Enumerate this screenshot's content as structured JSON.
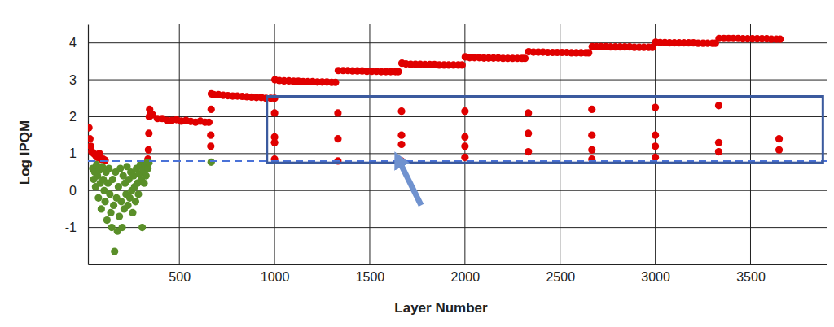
{
  "chart_data": {
    "type": "scatter",
    "x_label": "Layer Number",
    "y_label": "Log IPQM",
    "xlim": [
      20,
      3900
    ],
    "ylim": [
      -2,
      4.5
    ],
    "xticks": [
      500,
      1000,
      1500,
      2000,
      2500,
      3000,
      3500
    ],
    "yticks": [
      -1,
      0,
      1,
      2,
      3,
      4
    ],
    "grid": true,
    "threshold": 0.8,
    "highlight": {
      "x": [
        960,
        3880
      ],
      "y": [
        0.75,
        2.55
      ]
    },
    "arrow": {
      "from": [
        1770,
        -0.4
      ],
      "to": [
        1650,
        0.85
      ]
    },
    "series": [
      {
        "color": "#e00000",
        "marker": "circle",
        "x": [
          25,
          30,
          35,
          40,
          50,
          60,
          70,
          80,
          90,
          100,
          110,
          335,
          338,
          340,
          342,
          344,
          348,
          360,
          385,
          410,
          435,
          460,
          485,
          510,
          535,
          560,
          585,
          610,
          635,
          655,
          665,
          665,
          667,
          668,
          680,
          705,
          730,
          755,
          780,
          805,
          830,
          855,
          880,
          905,
          930,
          955,
          980,
          1000,
          1000,
          1000,
          1000,
          1000,
          1002,
          1025,
          1050,
          1075,
          1100,
          1125,
          1150,
          1175,
          1200,
          1225,
          1250,
          1275,
          1300,
          1320,
          1333,
          1333,
          1333,
          1335,
          1360,
          1385,
          1410,
          1435,
          1460,
          1485,
          1510,
          1535,
          1560,
          1585,
          1610,
          1635,
          1650,
          1667,
          1667,
          1667,
          1667,
          1669,
          1690,
          1715,
          1740,
          1765,
          1790,
          1815,
          1840,
          1865,
          1890,
          1915,
          1940,
          1965,
          1985,
          2000,
          2000,
          2000,
          2000,
          2002,
          2025,
          2050,
          2075,
          2100,
          2125,
          2150,
          2175,
          2200,
          2225,
          2250,
          2275,
          2300,
          2315,
          2333,
          2333,
          2333,
          2335,
          2360,
          2385,
          2410,
          2435,
          2460,
          2485,
          2510,
          2535,
          2560,
          2585,
          2610,
          2635,
          2650,
          2667,
          2667,
          2667,
          2667,
          2669,
          2690,
          2715,
          2740,
          2765,
          2790,
          2815,
          2840,
          2865,
          2890,
          2915,
          2940,
          2965,
          2985,
          3000,
          3000,
          3000,
          3000,
          3002,
          3025,
          3050,
          3075,
          3100,
          3125,
          3150,
          3175,
          3200,
          3225,
          3250,
          3275,
          3300,
          3315,
          3333,
          3333,
          3333,
          3335,
          3360,
          3385,
          3410,
          3435,
          3460,
          3485,
          3510,
          3535,
          3560,
          3585,
          3610,
          3635,
          3655,
          3650,
          3650
        ],
        "values": [
          1.7,
          1.4,
          1.2,
          1.05,
          1.0,
          0.95,
          0.9,
          1.0,
          0.85,
          0.85,
          0.82,
          0.85,
          1.1,
          1.55,
          2.0,
          2.2,
          2.1,
          2.05,
          1.95,
          1.95,
          1.9,
          1.9,
          1.92,
          1.88,
          1.9,
          1.87,
          1.85,
          1.88,
          1.85,
          1.85,
          1.2,
          1.5,
          2.2,
          2.62,
          2.6,
          2.6,
          2.58,
          2.57,
          2.56,
          2.56,
          2.55,
          2.54,
          2.53,
          2.52,
          2.52,
          2.5,
          2.5,
          0.85,
          1.3,
          1.45,
          2.1,
          2.5,
          3.0,
          2.98,
          2.97,
          2.97,
          2.96,
          2.96,
          2.95,
          2.95,
          2.95,
          2.94,
          2.94,
          2.94,
          2.93,
          2.93,
          0.8,
          1.4,
          2.1,
          3.25,
          3.25,
          3.25,
          3.24,
          3.24,
          3.24,
          3.23,
          3.23,
          3.23,
          3.22,
          3.22,
          3.22,
          3.22,
          3.22,
          0.8,
          1.25,
          1.5,
          2.15,
          3.45,
          3.43,
          3.42,
          3.42,
          3.42,
          3.41,
          3.41,
          3.41,
          3.4,
          3.4,
          3.4,
          3.4,
          3.4,
          3.4,
          0.9,
          1.2,
          1.45,
          2.15,
          3.62,
          3.6,
          3.6,
          3.6,
          3.59,
          3.59,
          3.59,
          3.59,
          3.58,
          3.58,
          3.58,
          3.58,
          3.58,
          3.58,
          1.05,
          1.55,
          2.1,
          3.76,
          3.75,
          3.75,
          3.75,
          3.74,
          3.74,
          3.74,
          3.74,
          3.74,
          3.73,
          3.73,
          3.73,
          3.73,
          3.73,
          0.85,
          1.1,
          1.5,
          2.2,
          3.9,
          3.9,
          3.9,
          3.9,
          3.89,
          3.89,
          3.89,
          3.89,
          3.89,
          3.88,
          3.88,
          3.88,
          3.88,
          3.88,
          0.9,
          1.2,
          1.5,
          2.25,
          4.02,
          4.01,
          4.01,
          4.0,
          4.0,
          4.0,
          4.0,
          4.0,
          4.0,
          3.99,
          3.99,
          3.99,
          3.99,
          3.99,
          1.05,
          1.3,
          2.3,
          4.12,
          4.12,
          4.12,
          4.12,
          4.12,
          4.11,
          4.11,
          4.11,
          4.11,
          4.11,
          4.11,
          4.1,
          4.1,
          4.1,
          1.4,
          1.1
        ]
      },
      {
        "color": "#5a8f29",
        "marker": "circle",
        "x": [
          45,
          50,
          55,
          60,
          65,
          70,
          75,
          80,
          85,
          90,
          95,
          100,
          105,
          110,
          115,
          120,
          125,
          130,
          135,
          140,
          145,
          150,
          155,
          160,
          165,
          170,
          175,
          180,
          185,
          190,
          195,
          200,
          205,
          210,
          215,
          220,
          225,
          230,
          235,
          240,
          245,
          250,
          255,
          260,
          265,
          270,
          275,
          280,
          285,
          290,
          295,
          300,
          305,
          310,
          315,
          320,
          325,
          330,
          335,
          340,
          667
        ],
        "values": [
          0.6,
          0.3,
          0.5,
          0.1,
          0.7,
          0.4,
          -0.2,
          0.55,
          0.2,
          -0.5,
          0.65,
          0.3,
          0,
          -0.3,
          0.5,
          -0.8,
          0.2,
          0.6,
          -0.1,
          -0.6,
          -1.0,
          0.3,
          -0.4,
          -1.65,
          0.5,
          -0.2,
          -1.1,
          0.1,
          -0.7,
          0.6,
          -0.3,
          -1.0,
          0.4,
          -0.5,
          0.2,
          -0.1,
          0.65,
          -0.4,
          0.3,
          -0.2,
          0.5,
          0,
          -0.6,
          0.4,
          0.1,
          -0.3,
          0.6,
          0.2,
          -0.1,
          0.45,
          0.7,
          0.3,
          -1.0,
          0.55,
          0.2,
          0.7,
          0.4,
          0.75,
          0.6,
          0.75,
          0.77
        ]
      }
    ]
  }
}
